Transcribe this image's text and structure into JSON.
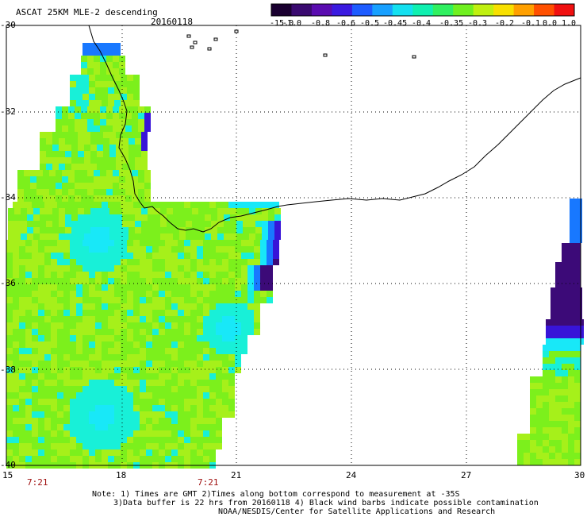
{
  "header": {
    "title": "ASCAT 25KM MLE-2 descending",
    "date": "20160118"
  },
  "colorbar": {
    "labels": [
      "-15.0",
      "-1.0",
      "-0.8",
      "-0.6",
      "-0.5",
      "-0.45",
      "-0.4",
      "-0.35",
      "-0.3",
      "-0.2",
      "-0.1",
      "0.0",
      "1.0"
    ],
    "colors": [
      "#1a0030",
      "#3a0a70",
      "#5a0cb0",
      "#3a1ae0",
      "#1e5cff",
      "#18a0ff",
      "#14e0f0",
      "#10f0b0",
      "#30f060",
      "#70f020",
      "#c0f010",
      "#f8e000",
      "#ffa000",
      "#ff5000",
      "#f01010"
    ]
  },
  "axes": {
    "y_labels": [
      "-30",
      "-32",
      "-34",
      "-36",
      "-38",
      "-40"
    ],
    "y_values": [
      -30,
      -32,
      -34,
      -36,
      -38,
      -40
    ],
    "x_labels": [
      "15",
      "18",
      "21",
      "24",
      "27",
      "30"
    ],
    "x_values": [
      15,
      18,
      21,
      24,
      27,
      30
    ]
  },
  "times": [
    "7:21",
    "7:21"
  ],
  "notes": {
    "line1": "Note: 1) Times are GMT 2)Times along bottom correspond to measurement at -35S",
    "line2": "3)Data buffer is 22 hrs from 20160118 4) Black wind barbs indicate possible contamination",
    "line3": "NOAA/NESDIS/Center for Satellite Applications and Research"
  },
  "map_colors": {
    "land_outline": "#000000",
    "grid": "#000000",
    "green": "#7cf01c",
    "lightgreen": "#a6f01a",
    "cyan": "#18f0d8",
    "aqua": "#18e8f8",
    "blue": "#1878ff",
    "indigo": "#3814d8",
    "violet": "#3c0a78"
  }
}
